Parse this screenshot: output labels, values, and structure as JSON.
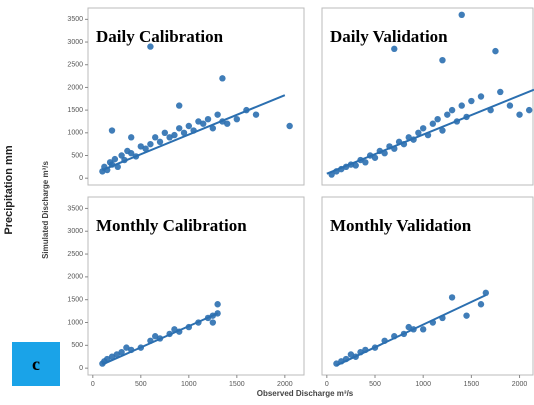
{
  "y_label": "Simulated Discharge m³/s",
  "x_label": "Observed Discharge m³/s",
  "side_label": "Precipitation mm",
  "panel_letter": "c",
  "chart_data": [
    {
      "type": "scatter",
      "title": "Daily Calibration",
      "color": "#2b6fb0",
      "x": [
        100,
        120,
        150,
        180,
        200,
        230,
        260,
        300,
        330,
        360,
        400,
        450,
        500,
        550,
        600,
        650,
        700,
        750,
        800,
        850,
        900,
        950,
        1000,
        1050,
        1100,
        1150,
        1200,
        1250,
        1300,
        1350,
        1400,
        1500,
        1600,
        1700,
        600,
        1350,
        200,
        2050,
        400,
        900
      ],
      "values": [
        150,
        250,
        180,
        350,
        300,
        420,
        250,
        500,
        400,
        600,
        550,
        480,
        700,
        650,
        750,
        900,
        800,
        1000,
        900,
        950,
        1100,
        1000,
        1150,
        1050,
        1250,
        1200,
        1300,
        1100,
        1400,
        1250,
        1200,
        1300,
        1500,
        1400,
        2900,
        2200,
        1050,
        1150,
        900,
        1600
      ],
      "trend_line": {
        "x": [
          100,
          2000
        ],
        "y": [
          180,
          1830
        ]
      },
      "xlim": [
        -50,
        2210
      ],
      "ylim": [
        -150,
        3750
      ],
      "yticks": [
        0,
        500,
        1000,
        1500,
        2000,
        2500,
        3000,
        3500
      ]
    },
    {
      "type": "scatter",
      "title": "Daily Validation",
      "color": "#2b6fb0",
      "x": [
        50,
        100,
        150,
        200,
        250,
        300,
        350,
        400,
        450,
        500,
        550,
        600,
        650,
        700,
        750,
        800,
        850,
        900,
        950,
        1000,
        1050,
        1100,
        1150,
        1200,
        1250,
        1300,
        1350,
        1400,
        1450,
        1500,
        1600,
        1700,
        1800,
        1900,
        2000,
        2100,
        1400,
        700,
        1750,
        1200
      ],
      "values": [
        80,
        150,
        200,
        250,
        300,
        280,
        400,
        350,
        500,
        450,
        600,
        550,
        700,
        650,
        800,
        750,
        900,
        850,
        1000,
        1100,
        950,
        1200,
        1300,
        1050,
        1400,
        1500,
        1250,
        1600,
        1350,
        1700,
        1800,
        1500,
        1900,
        1600,
        1400,
        1500,
        3600,
        2850,
        2800,
        2600
      ],
      "trend_line": {
        "x": [
          0,
          2150
        ],
        "y": [
          100,
          1950
        ]
      },
      "xlim": [
        -50,
        2150
      ],
      "ylim": [
        -150,
        3750
      ]
    },
    {
      "type": "scatter",
      "title": "Monthly Calibration",
      "color": "#2b6fb0",
      "x": [
        100,
        120,
        150,
        200,
        250,
        300,
        350,
        400,
        500,
        600,
        650,
        700,
        800,
        850,
        900,
        1000,
        1100,
        1200,
        1250,
        1300,
        1300,
        1250
      ],
      "values": [
        100,
        150,
        200,
        250,
        300,
        350,
        450,
        400,
        450,
        600,
        700,
        650,
        750,
        850,
        800,
        900,
        1000,
        1100,
        1150,
        1400,
        1200,
        1000
      ],
      "trend_line": {
        "x": [
          100,
          1300
        ],
        "y": [
          80,
          1200
        ]
      },
      "xlim": [
        -50,
        2210
      ],
      "ylim": [
        -150,
        3750
      ],
      "yticks": [
        0,
        500,
        1000,
        1500,
        2000,
        2500,
        3000,
        3500
      ],
      "xticks": [
        0,
        500,
        1000,
        1500,
        2000
      ]
    },
    {
      "type": "scatter",
      "title": "Monthly Validation",
      "color": "#2b6fb0",
      "x": [
        100,
        150,
        200,
        250,
        300,
        350,
        400,
        500,
        600,
        700,
        800,
        850,
        900,
        1000,
        1100,
        1200,
        1300,
        1450,
        1600,
        1650
      ],
      "values": [
        100,
        150,
        200,
        300,
        250,
        350,
        400,
        450,
        600,
        700,
        750,
        900,
        850,
        850,
        1000,
        1100,
        1550,
        1150,
        1400,
        1650
      ],
      "trend_line": {
        "x": [
          100,
          1650
        ],
        "y": [
          60,
          1600
        ]
      },
      "xlim": [
        -50,
        2150
      ],
      "ylim": [
        -150,
        3750
      ],
      "xticks": [
        0,
        500,
        1000,
        1500,
        2000
      ]
    }
  ]
}
